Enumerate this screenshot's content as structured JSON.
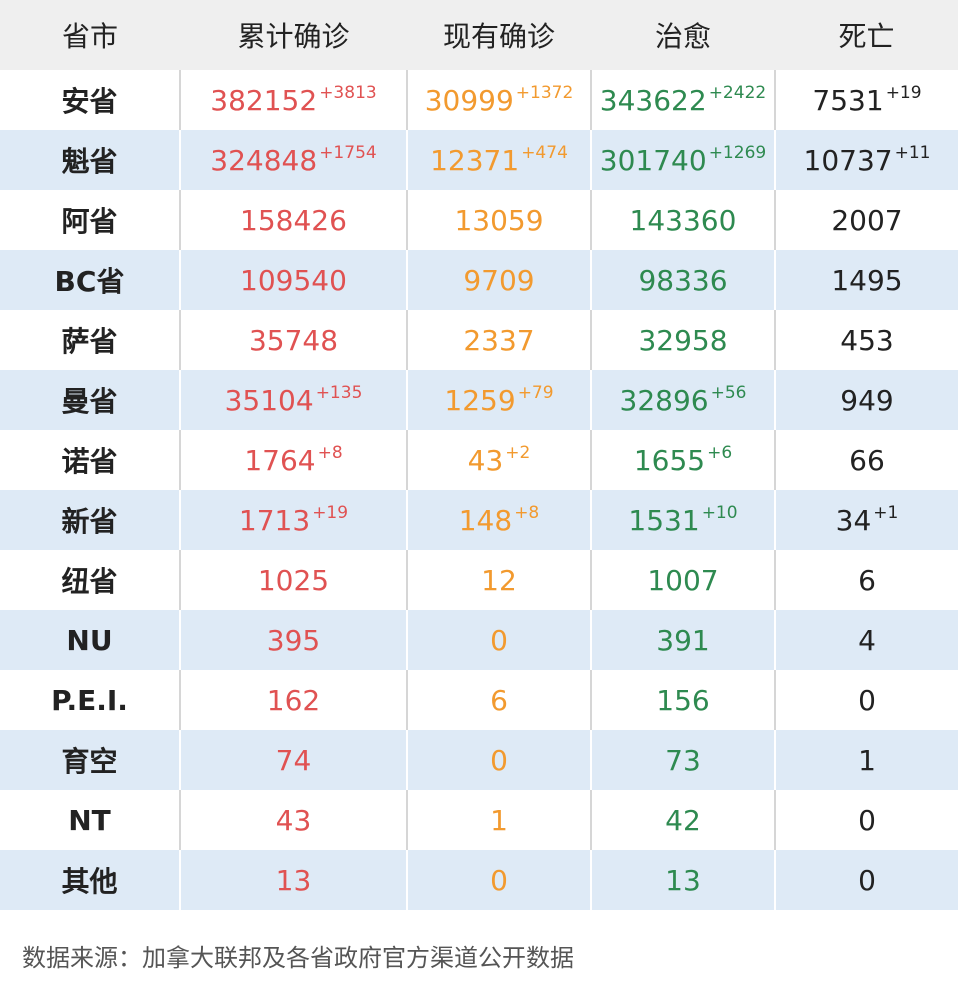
{
  "header": {
    "province": "省市",
    "confirmed": "累计确诊",
    "active": "现有确诊",
    "cured": "治愈",
    "deaths": "死亡"
  },
  "rows": [
    {
      "name": "安省",
      "confirmed": "382152",
      "confirmed_inc": "+3813",
      "active": "30999",
      "active_inc": "+1372",
      "cured": "343622",
      "cured_inc": "+2422",
      "deaths": "7531",
      "deaths_inc": "+19"
    },
    {
      "name": "魁省",
      "confirmed": "324848",
      "confirmed_inc": "+1754",
      "active": "12371",
      "active_inc": "+474",
      "cured": "301740",
      "cured_inc": "+1269",
      "deaths": "10737",
      "deaths_inc": "+11"
    },
    {
      "name": "阿省",
      "confirmed": "158426",
      "confirmed_inc": "",
      "active": "13059",
      "active_inc": "",
      "cured": "143360",
      "cured_inc": "",
      "deaths": "2007",
      "deaths_inc": ""
    },
    {
      "name": "BC省",
      "confirmed": "109540",
      "confirmed_inc": "",
      "active": "9709",
      "active_inc": "",
      "cured": "98336",
      "cured_inc": "",
      "deaths": "1495",
      "deaths_inc": ""
    },
    {
      "name": "萨省",
      "confirmed": "35748",
      "confirmed_inc": "",
      "active": "2337",
      "active_inc": "",
      "cured": "32958",
      "cured_inc": "",
      "deaths": "453",
      "deaths_inc": ""
    },
    {
      "name": "曼省",
      "confirmed": "35104",
      "confirmed_inc": "+135",
      "active": "1259",
      "active_inc": "+79",
      "cured": "32896",
      "cured_inc": "+56",
      "deaths": "949",
      "deaths_inc": ""
    },
    {
      "name": "诺省",
      "confirmed": "1764",
      "confirmed_inc": "+8",
      "active": "43",
      "active_inc": "+2",
      "cured": "1655",
      "cured_inc": "+6",
      "deaths": "66",
      "deaths_inc": ""
    },
    {
      "name": "新省",
      "confirmed": "1713",
      "confirmed_inc": "+19",
      "active": "148",
      "active_inc": "+8",
      "cured": "1531",
      "cured_inc": "+10",
      "deaths": "34",
      "deaths_inc": "+1"
    },
    {
      "name": "纽省",
      "confirmed": "1025",
      "confirmed_inc": "",
      "active": "12",
      "active_inc": "",
      "cured": "1007",
      "cured_inc": "",
      "deaths": "6",
      "deaths_inc": ""
    },
    {
      "name": "NU",
      "confirmed": "395",
      "confirmed_inc": "",
      "active": "0",
      "active_inc": "",
      "cured": "391",
      "cured_inc": "",
      "deaths": "4",
      "deaths_inc": ""
    },
    {
      "name": "P.E.I.",
      "confirmed": "162",
      "confirmed_inc": "",
      "active": "6",
      "active_inc": "",
      "cured": "156",
      "cured_inc": "",
      "deaths": "0",
      "deaths_inc": ""
    },
    {
      "name": "育空",
      "confirmed": "74",
      "confirmed_inc": "",
      "active": "0",
      "active_inc": "",
      "cured": "73",
      "cured_inc": "",
      "deaths": "1",
      "deaths_inc": ""
    },
    {
      "name": "NT",
      "confirmed": "43",
      "confirmed_inc": "",
      "active": "1",
      "active_inc": "",
      "cured": "42",
      "cured_inc": "",
      "deaths": "0",
      "deaths_inc": ""
    },
    {
      "name": "其他",
      "confirmed": "13",
      "confirmed_inc": "",
      "active": "0",
      "active_inc": "",
      "cured": "13",
      "cured_inc": "",
      "deaths": "0",
      "deaths_inc": ""
    }
  ],
  "footer": {
    "source": "数据来源：加拿大联邦及各省政府官方渠道公开数据"
  },
  "colors": {
    "confirmed": "#e05252",
    "active": "#f29a2f",
    "cured": "#2e8a50",
    "deaths": "#222222",
    "stripe": "#deeaf6",
    "header_bg": "#efefef"
  }
}
